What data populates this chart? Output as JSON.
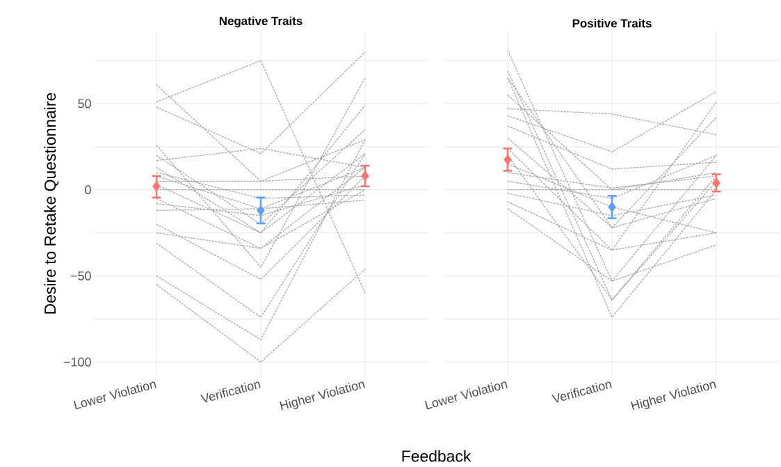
{
  "chart_data": [
    {
      "type": "line",
      "title": "Negative Traits",
      "ylabel": "Desire to Retake Questionnaire",
      "xlabel": "Feedback",
      "categories": [
        "Lower Violation",
        "Verification",
        "Higher Violation"
      ],
      "ylim": [
        -108,
        92
      ],
      "yticks": [
        {
          "value": -100,
          "label": "−100"
        },
        {
          "value": -75,
          "label": null
        },
        {
          "value": -50,
          "label": "−50"
        },
        {
          "value": -25,
          "label": null
        },
        0,
        {
          "value": 25,
          "label": null
        },
        50,
        {
          "value": 75,
          "label": null
        }
      ],
      "grid": true,
      "line_style": "dashed",
      "series": [
        {
          "color": "#a6a6a6",
          "values": [
            61,
            5,
            29
          ]
        },
        {
          "color": "#a6a6a6",
          "values": [
            51,
            75,
            -60
          ]
        },
        {
          "color": "#a6a6a6",
          "values": [
            48,
            21,
            80
          ]
        },
        {
          "color": "#a6a6a6",
          "values": [
            26,
            -45,
            65
          ]
        },
        {
          "color": "#a6a6a6",
          "values": [
            13,
            -25,
            49
          ]
        },
        {
          "color": "#a6a6a6",
          "values": [
            -55,
            -100,
            -46
          ]
        },
        {
          "color": "#a6a6a6",
          "values": [
            -50,
            -87,
            29
          ]
        },
        {
          "color": "#a6a6a6",
          "values": [
            -31,
            -74,
            21
          ]
        },
        {
          "color": "#a6a6a6",
          "values": [
            8,
            -11,
            13
          ]
        },
        {
          "color": "#a6a6a6",
          "values": [
            -5,
            -34,
            13
          ]
        },
        {
          "color": "#a6a6a6",
          "values": [
            0,
            0,
            0
          ]
        },
        {
          "color": "#a6a6a6",
          "values": [
            -20,
            -52,
            8
          ]
        },
        {
          "color": "#a6a6a6",
          "values": [
            3,
            -25,
            21
          ]
        },
        {
          "color": "#a6a6a6",
          "values": [
            17,
            24,
            13
          ]
        },
        {
          "color": "#a6a6a6",
          "values": [
            -12,
            -11,
            -6
          ]
        },
        {
          "color": "#a6a6a6",
          "values": [
            10,
            -5,
            -3
          ]
        },
        {
          "color": "#a6a6a6",
          "values": [
            -25,
            -34,
            0
          ]
        },
        {
          "color": "#a6a6a6",
          "values": [
            5,
            5,
            8
          ]
        },
        {
          "color": "#a6a6a6",
          "values": [
            -8,
            -15,
            3
          ]
        },
        {
          "color": "#a6a6a6",
          "values": [
            20,
            -20,
            35
          ]
        },
        {
          "type": "scatter",
          "marker": "diamond",
          "colors": [
            "#f8766d",
            "#619cff",
            "#f8766d"
          ],
          "values": [
            2,
            -12,
            8
          ],
          "errors": [
            [
              -4.5,
              8
            ],
            [
              -19.5,
              -4.5
            ],
            [
              2,
              14
            ]
          ]
        }
      ]
    },
    {
      "type": "line",
      "title": "Positive Traits",
      "categories": [
        "Lower Violation",
        "Verification",
        "Higher Violation"
      ],
      "ylim": [
        -108,
        92
      ],
      "yticks": [
        {
          "value": -100,
          "label": null
        },
        {
          "value": -75,
          "label": null
        },
        {
          "value": -50,
          "label": null
        },
        {
          "value": -25,
          "label": null
        },
        {
          "value": 0,
          "label": null
        },
        {
          "value": 25,
          "label": null
        },
        {
          "value": 50,
          "label": null
        },
        {
          "value": 75,
          "label": null
        }
      ],
      "grid": true,
      "line_style": "dashed",
      "tick_labels": "x",
      "series": [
        {
          "color": "#a6a6a6",
          "values": [
            81,
            -53,
            20
          ]
        },
        {
          "color": "#a6a6a6",
          "values": [
            69,
            -64,
            8
          ]
        },
        {
          "color": "#a6a6a6",
          "values": [
            65,
            -74,
            0
          ]
        },
        {
          "color": "#a6a6a6",
          "values": [
            47,
            44,
            32
          ]
        },
        {
          "color": "#a6a6a6",
          "values": [
            43,
            22,
            57
          ]
        },
        {
          "color": "#a6a6a6",
          "values": [
            37,
            12,
            16
          ]
        },
        {
          "color": "#a6a6a6",
          "values": [
            24,
            -35,
            51
          ]
        },
        {
          "color": "#a6a6a6",
          "values": [
            65,
            -22,
            -5
          ]
        },
        {
          "color": "#a6a6a6",
          "values": [
            10,
            1,
            8
          ]
        },
        {
          "color": "#a6a6a6",
          "values": [
            0,
            0,
            0
          ]
        },
        {
          "color": "#a6a6a6",
          "values": [
            -7,
            -35,
            -25
          ]
        },
        {
          "color": "#a6a6a6",
          "values": [
            -11,
            -53,
            -32
          ]
        },
        {
          "color": "#a6a6a6",
          "values": [
            30,
            -22,
            42
          ]
        },
        {
          "color": "#a6a6a6",
          "values": [
            15,
            -10,
            -25
          ]
        },
        {
          "color": "#a6a6a6",
          "values": [
            5,
            -5,
            20
          ]
        },
        {
          "color": "#a6a6a6",
          "values": [
            55,
            0,
            10
          ]
        },
        {
          "color": "#a6a6a6",
          "values": [
            20,
            -64,
            5
          ]
        },
        {
          "color": "#a6a6a6",
          "values": [
            -2,
            -15,
            -3
          ]
        },
        {
          "type": "scatter",
          "marker": "diamond",
          "colors": [
            "#f8766d",
            "#619cff",
            "#f8766d"
          ],
          "values": [
            17.5,
            -10,
            4
          ],
          "errors": [
            [
              11,
              24
            ],
            [
              -16.5,
              -3.5
            ],
            [
              -1,
              9
            ]
          ]
        }
      ]
    }
  ]
}
